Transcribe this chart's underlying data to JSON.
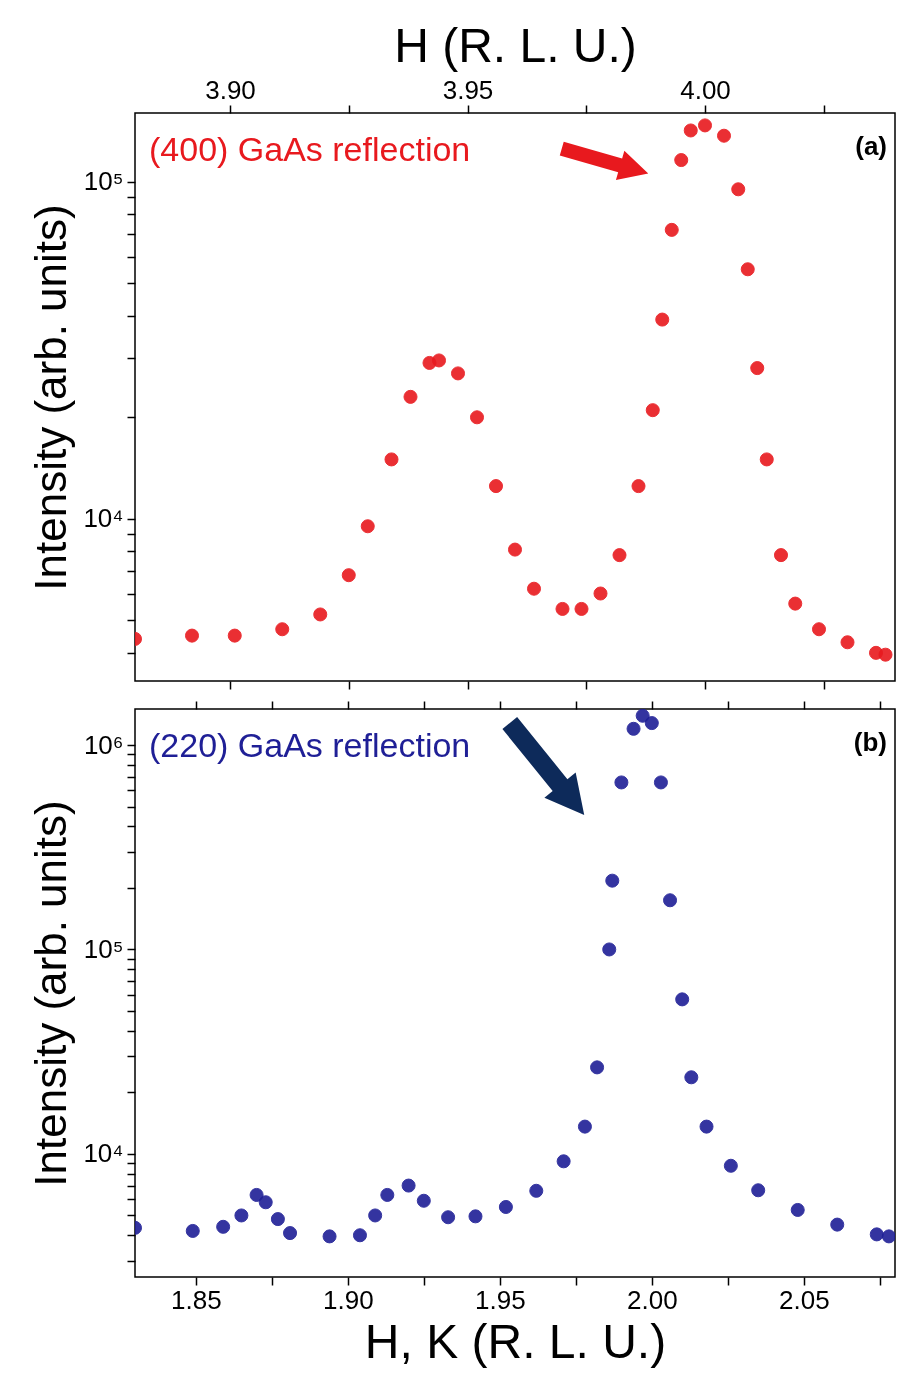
{
  "chart_data": [
    {
      "type": "scatter",
      "xlabel": "H (R. L. U.)",
      "ylabel": "Intensity (arb. units)",
      "log": true,
      "marker": "circle",
      "annotations": [
        "(400) GaAs reflection",
        "(a)"
      ],
      "xlim": [
        3.88,
        4.04
      ],
      "xticks": [
        {
          "value": 3.9,
          "label": "3.90"
        },
        {
          "value": 3.925,
          "label": null
        },
        {
          "value": 3.95,
          "label": "3.95"
        },
        {
          "value": 3.975,
          "label": null
        },
        {
          "value": 4,
          "label": "4.00"
        },
        {
          "value": 4.025,
          "label": null
        }
      ],
      "ylim": [
        3300,
        160000
      ],
      "yticks": [
        {
          "value": 4000,
          "label": null
        },
        {
          "value": 5000,
          "label": null
        },
        {
          "value": 6000,
          "label": null
        },
        {
          "value": 7000,
          "label": null
        },
        {
          "value": 8000,
          "label": null
        },
        {
          "value": 9000,
          "label": null
        },
        {
          "value": 10000,
          "label": "10⁴"
        },
        {
          "value": 20000,
          "label": null
        },
        {
          "value": 30000,
          "label": null
        },
        {
          "value": 40000,
          "label": null
        },
        {
          "value": 50000,
          "label": null
        },
        {
          "value": 60000,
          "label": null
        },
        {
          "value": 70000,
          "label": null
        },
        {
          "value": 80000,
          "label": null
        },
        {
          "value": 90000,
          "label": null
        },
        {
          "value": 100000,
          "label": "10⁵"
        }
      ],
      "x": [
        3.88,
        3.892,
        3.901,
        3.911,
        3.919,
        3.925,
        3.929,
        3.934,
        3.938,
        3.942,
        3.944,
        3.948,
        3.952,
        3.956,
        3.96,
        3.964,
        3.97,
        3.974,
        3.978,
        3.982,
        3.986,
        3.989,
        3.991,
        3.993,
        3.995,
        3.997,
        4.0,
        4.004,
        4.007,
        4.009,
        4.011,
        4.013,
        4.016,
        4.019,
        4.024,
        4.03,
        4.036,
        4.038
      ],
      "series": [
        {
          "color": "#e8191e",
          "values": [
            4400,
            4500,
            4500,
            4700,
            5200,
            6800,
            9500,
            15000,
            23000,
            29000,
            29500,
            27000,
            20000,
            12500,
            8100,
            6200,
            5400,
            5400,
            6000,
            7800,
            12500,
            21000,
            39000,
            72000,
            116000,
            142000,
            147000,
            137000,
            95000,
            55000,
            28000,
            15000,
            7800,
            5600,
            4700,
            4300,
            4000,
            3950
          ]
        }
      ]
    },
    {
      "type": "scatter",
      "xlabel": "H, K (R. L. U.)",
      "ylabel": "Intensity (arb. units)",
      "log": true,
      "marker": "circle",
      "annotations": [
        "(220) GaAs reflection",
        "(b)"
      ],
      "xlim": [
        1.83,
        2.08
      ],
      "xticks": [
        1.85,
        {
          "value": 1.875,
          "label": null
        },
        {
          "value": 1.9,
          "label": "1.90"
        },
        {
          "value": 1.925,
          "label": null
        },
        1.95,
        {
          "value": 1.975,
          "label": null
        },
        {
          "value": 2,
          "label": "2.00"
        },
        {
          "value": 2.025,
          "label": null
        },
        2.05,
        {
          "value": 2.075,
          "label": null
        }
      ],
      "ylim": [
        2500,
        1500000
      ],
      "yticks": [
        {
          "value": 3000,
          "label": null
        },
        {
          "value": 4000,
          "label": null
        },
        {
          "value": 5000,
          "label": null
        },
        {
          "value": 6000,
          "label": null
        },
        {
          "value": 7000,
          "label": null
        },
        {
          "value": 8000,
          "label": null
        },
        {
          "value": 9000,
          "label": null
        },
        {
          "value": 10000,
          "label": "10⁴"
        },
        {
          "value": 20000,
          "label": null
        },
        {
          "value": 30000,
          "label": null
        },
        {
          "value": 40000,
          "label": null
        },
        {
          "value": 50000,
          "label": null
        },
        {
          "value": 60000,
          "label": null
        },
        {
          "value": 70000,
          "label": null
        },
        {
          "value": 80000,
          "label": null
        },
        {
          "value": 90000,
          "label": null
        },
        {
          "value": 100000,
          "label": "10⁵"
        },
        {
          "value": 200000,
          "label": null
        },
        {
          "value": 300000,
          "label": null
        },
        {
          "value": 400000,
          "label": null
        },
        {
          "value": 500000,
          "label": null
        },
        {
          "value": 600000,
          "label": null
        },
        {
          "value": 700000,
          "label": null
        },
        {
          "value": 800000,
          "label": null
        },
        {
          "value": 900000,
          "label": null
        },
        {
          "value": 1000000,
          "label": "10⁶"
        }
      ],
      "x": [
        1.83,
        1.849,
        1.859,
        1.865,
        1.87,
        1.873,
        1.877,
        1.881,
        1.894,
        1.904,
        1.909,
        1.913,
        1.92,
        1.925,
        1.933,
        1.942,
        1.952,
        1.962,
        1.971,
        1.978,
        1.982,
        1.986,
        1.987,
        1.99,
        1.994,
        1.997,
        2.0,
        2.003,
        2.006,
        2.01,
        2.013,
        2.018,
        2.026,
        2.035,
        2.048,
        2.061,
        2.074,
        2.078
      ],
      "series": [
        {
          "color": "#1f1f96",
          "values": [
            4350,
            4200,
            4400,
            5000,
            6300,
            5800,
            4800,
            4100,
            3950,
            4000,
            5000,
            6300,
            7000,
            5900,
            4900,
            4950,
            5500,
            6600,
            9200,
            13600,
            26500,
            100000,
            217000,
            656000,
            1200000,
            1390000,
            1280000,
            656000,
            174000,
            57000,
            23700,
            13600,
            8750,
            6640,
            5320,
            4510,
            4040,
            3950
          ]
        }
      ]
    }
  ]
}
